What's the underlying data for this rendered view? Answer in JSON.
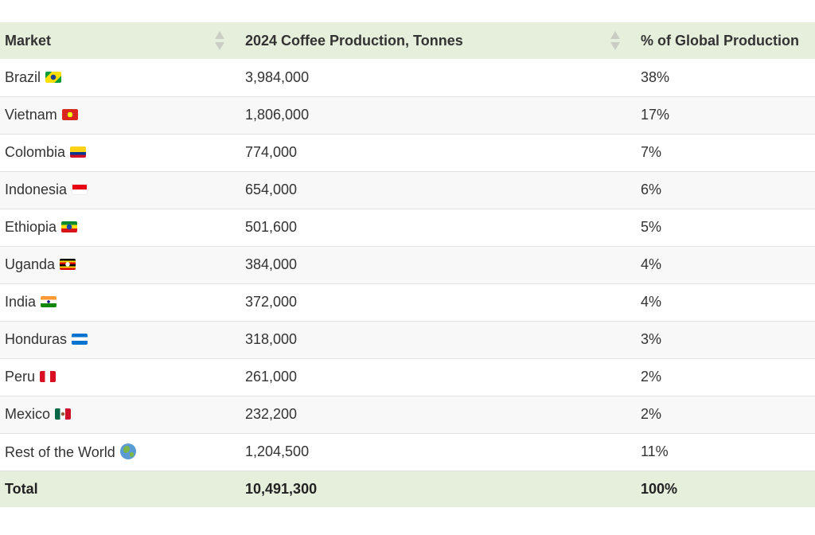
{
  "table": {
    "headers": [
      {
        "label": "Market",
        "sortable": true
      },
      {
        "label": "2024 Coffee Production, Tonnes",
        "sortable": true
      },
      {
        "label": "% of Global Production",
        "sortable": false
      }
    ],
    "rows": [
      {
        "market": "Brazil",
        "flag": "brazil-flag-icon",
        "production": "3,984,000",
        "share": "38%"
      },
      {
        "market": "Vietnam",
        "flag": "vietnam-flag-icon",
        "production": "1,806,000",
        "share": "17%"
      },
      {
        "market": "Colombia",
        "flag": "colombia-flag-icon",
        "production": "774,000",
        "share": "7%"
      },
      {
        "market": "Indonesia",
        "flag": "indonesia-flag-icon",
        "production": "654,000",
        "share": "6%"
      },
      {
        "market": "Ethiopia",
        "flag": "ethiopia-flag-icon",
        "production": "501,600",
        "share": "5%"
      },
      {
        "market": "Uganda",
        "flag": "uganda-flag-icon",
        "production": "384,000",
        "share": "4%"
      },
      {
        "market": "India",
        "flag": "india-flag-icon",
        "production": "372,000",
        "share": "4%"
      },
      {
        "market": "Honduras",
        "flag": "honduras-flag-icon",
        "production": "318,000",
        "share": "3%"
      },
      {
        "market": "Peru",
        "flag": "peru-flag-icon",
        "production": "261,000",
        "share": "2%"
      },
      {
        "market": "Mexico",
        "flag": "mexico-flag-icon",
        "production": "232,200",
        "share": "2%"
      },
      {
        "market": "Rest of the World",
        "flag": "globe-icon",
        "production": "1,204,500",
        "share": "11%"
      }
    ],
    "footer": {
      "label": "Total",
      "production": "10,491,300",
      "share": "100%"
    }
  },
  "colors": {
    "header_bg": "#e6efdc",
    "row_alt_bg": "#f8f8f8",
    "text": "#333333",
    "sort_arrow": "#c9cdc4"
  }
}
